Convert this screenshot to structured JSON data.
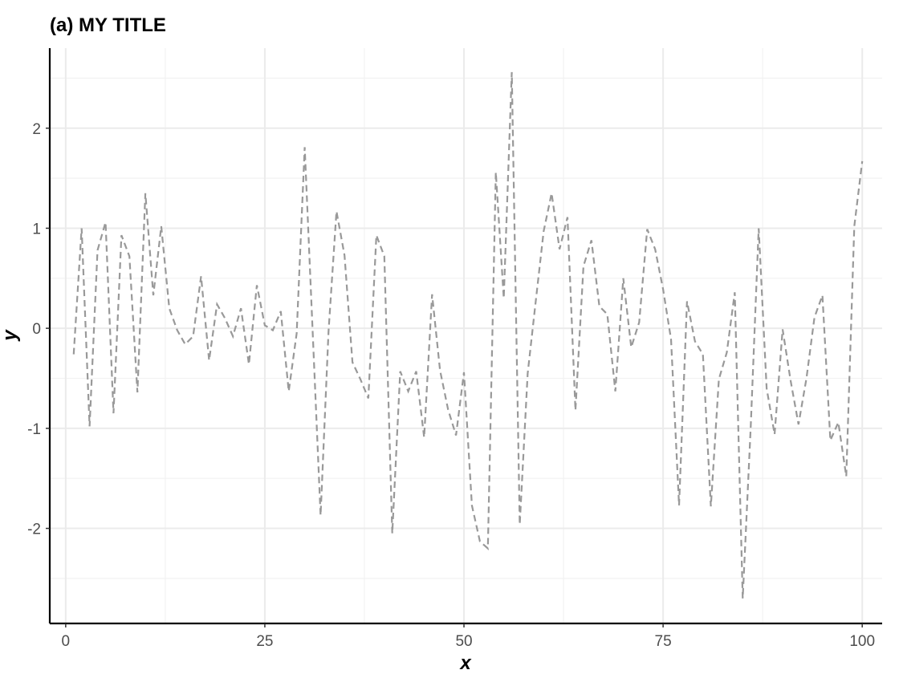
{
  "chart_data": {
    "type": "line",
    "title": "(a) MY TITLE",
    "xlabel": "x",
    "ylabel": "y",
    "xlim": [
      -2,
      102.5
    ],
    "ylim": [
      -2.95,
      2.8
    ],
    "x_ticks": [
      0,
      25,
      50,
      75,
      100
    ],
    "x_tick_labels": [
      "0",
      "25",
      "50",
      "75",
      "100"
    ],
    "y_ticks": [
      -2,
      -1,
      0,
      1,
      2
    ],
    "y_tick_labels": [
      "-2",
      "-1",
      "0",
      "1",
      "2"
    ],
    "x_minor_ticks": [
      12.5,
      37.5,
      62.5,
      87.5
    ],
    "y_minor_ticks": [
      -2.5,
      -1.5,
      -0.5,
      0.5,
      1.5,
      2.5
    ],
    "grid": true,
    "line_color": "#999999",
    "line_style": "dashed",
    "series": [
      {
        "x": [
          1,
          2,
          3,
          4,
          5,
          6,
          7,
          8,
          9,
          10,
          11,
          12,
          13,
          14,
          15,
          16,
          17,
          18,
          19,
          20,
          21,
          22,
          23,
          24,
          25,
          26,
          27,
          28,
          29,
          30,
          31,
          32,
          33,
          34,
          35,
          36,
          37,
          38,
          39,
          40,
          41,
          42,
          43,
          44,
          45,
          46,
          47,
          48,
          49,
          50,
          51,
          52,
          53,
          54,
          55,
          56,
          57,
          58,
          59,
          60,
          61,
          62,
          63,
          64,
          65,
          66,
          67,
          68,
          69,
          70,
          71,
          72,
          73,
          74,
          75,
          76,
          77,
          78,
          79,
          80,
          81,
          82,
          83,
          84,
          85,
          86,
          87,
          88,
          89,
          90,
          91,
          92,
          93,
          94,
          95,
          96,
          97,
          98,
          99,
          100
        ],
        "values": [
          -0.26,
          1.0,
          -0.98,
          0.78,
          1.06,
          -0.85,
          0.93,
          0.72,
          -0.64,
          1.35,
          0.33,
          1.02,
          0.2,
          -0.02,
          -0.16,
          -0.08,
          0.52,
          -0.32,
          0.24,
          0.1,
          -0.08,
          0.2,
          -0.36,
          0.43,
          0.03,
          -0.02,
          0.17,
          -0.63,
          -0.05,
          1.81,
          -0.03,
          -1.87,
          -0.03,
          1.17,
          0.73,
          -0.34,
          -0.51,
          -0.7,
          0.93,
          0.72,
          -2.05,
          -0.43,
          -0.63,
          -0.43,
          -1.09,
          0.34,
          -0.42,
          -0.81,
          -1.07,
          -0.44,
          -1.77,
          -2.13,
          -2.2,
          1.56,
          0.3,
          2.56,
          -1.96,
          -0.45,
          0.26,
          0.97,
          1.35,
          0.79,
          1.11,
          -0.82,
          0.62,
          0.88,
          0.22,
          0.14,
          -0.63,
          0.5,
          -0.19,
          0.06,
          0.99,
          0.79,
          0.39,
          -0.11,
          -1.77,
          0.27,
          -0.13,
          -0.26,
          -1.78,
          -0.51,
          -0.24,
          0.36,
          -2.7,
          -0.98,
          1.0,
          -0.6,
          -1.06,
          -0.01,
          -0.52,
          -0.96,
          -0.5,
          0.11,
          0.33,
          -1.12,
          -0.94,
          -1.48,
          1.02,
          1.67
        ]
      }
    ]
  }
}
